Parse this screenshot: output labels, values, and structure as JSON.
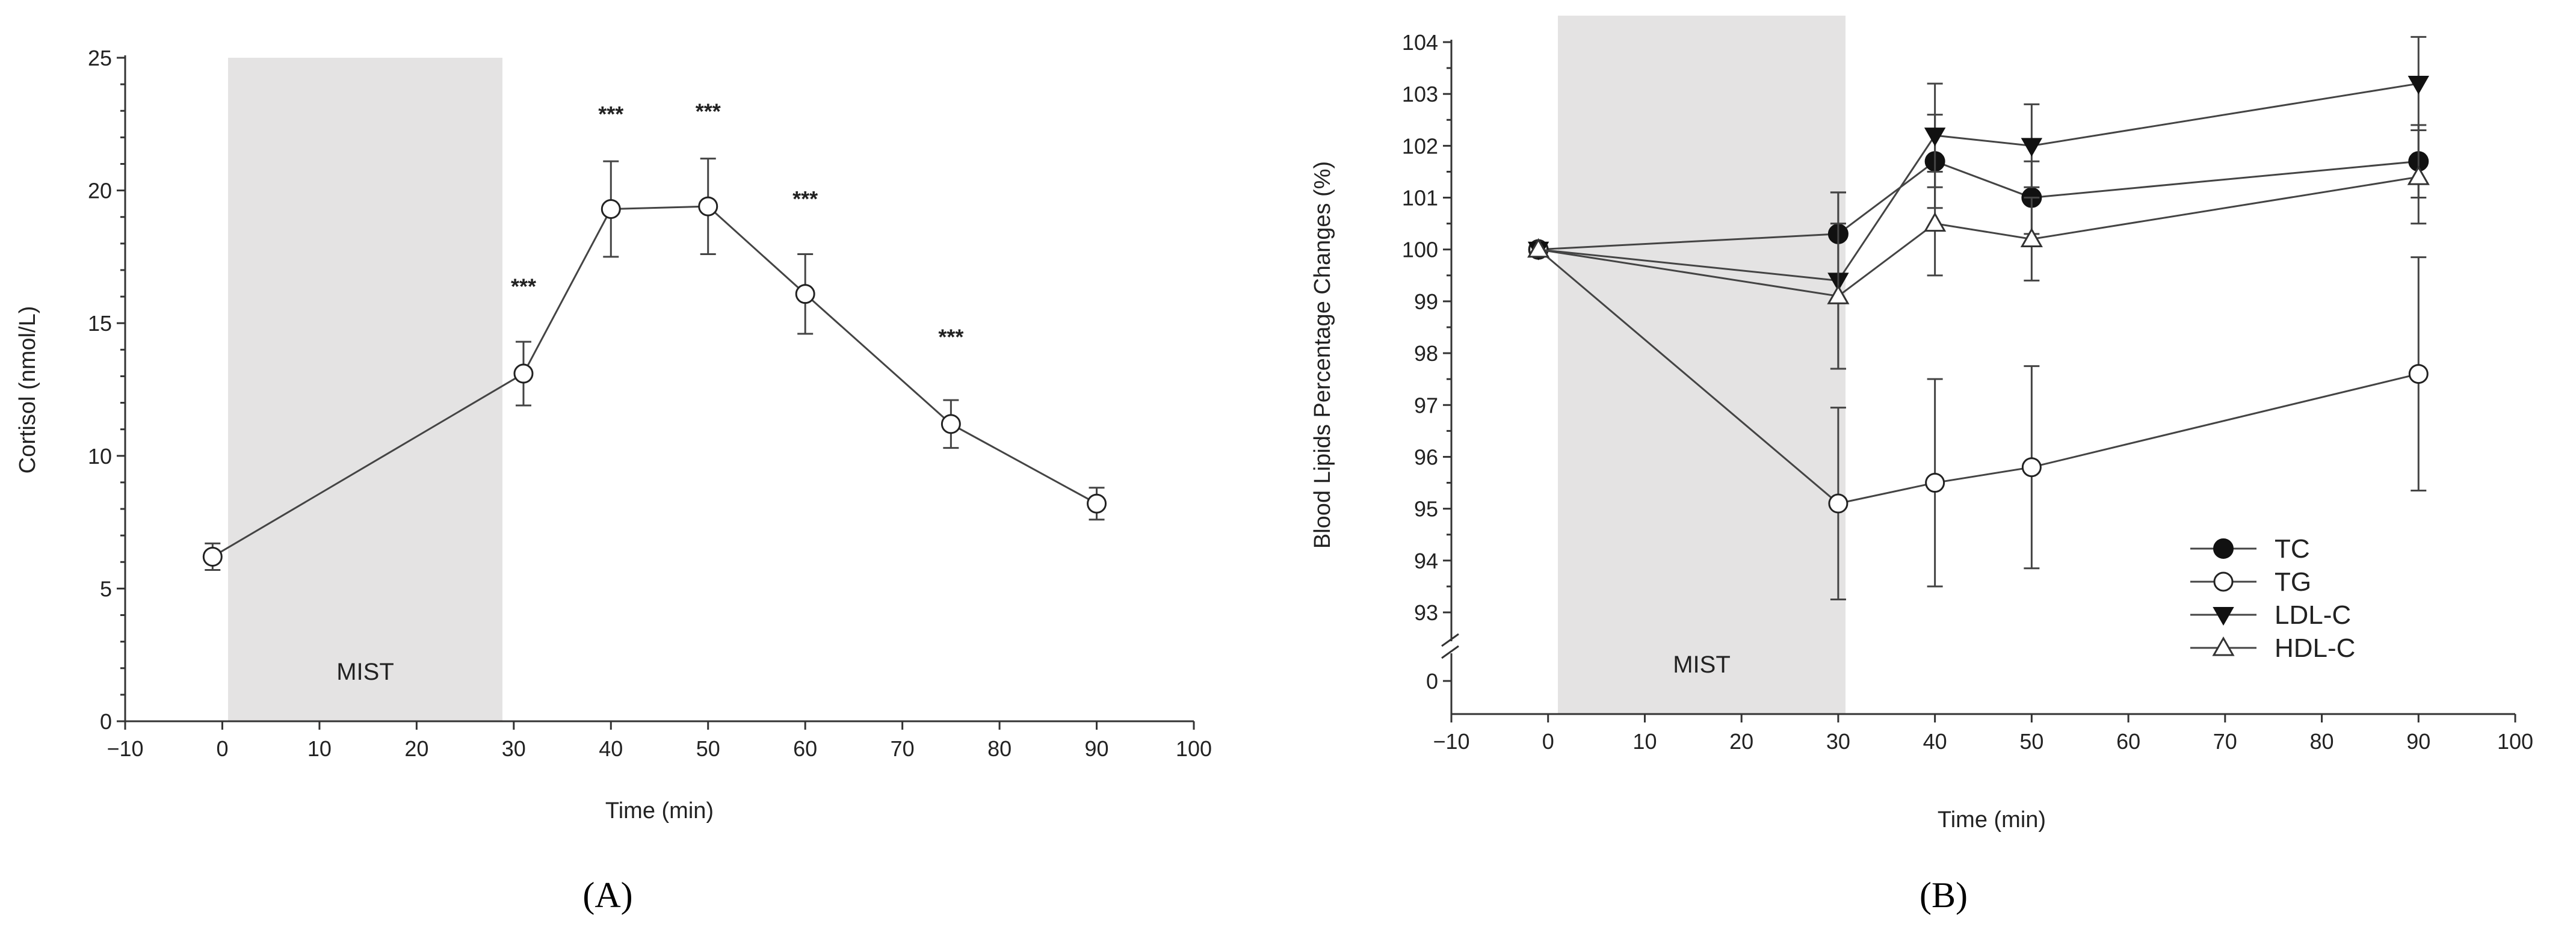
{
  "chart_data": [
    {
      "panel": "(A)",
      "type": "line",
      "ylabel": "Cortisol (nmol/L)",
      "xlabel": "Time (min)",
      "xlim": [
        -10,
        100
      ],
      "ylim": [
        0,
        25
      ],
      "xticks": [
        -10,
        0,
        10,
        20,
        30,
        40,
        50,
        60,
        70,
        80,
        90,
        100
      ],
      "yticks": [
        0,
        5,
        10,
        15,
        20,
        25
      ],
      "shaded_region": {
        "label": "MIST",
        "x": [
          0,
          30
        ]
      },
      "series": [
        {
          "name": "Cortisol",
          "marker": "open-circle",
          "x": [
            -1,
            31,
            40,
            50,
            60,
            75,
            90
          ],
          "y": [
            6.2,
            13.1,
            19.3,
            19.4,
            16.1,
            11.2,
            8.2
          ],
          "error": [
            0.5,
            1.2,
            1.8,
            1.8,
            1.5,
            0.9,
            0.6
          ]
        }
      ],
      "annotations": [
        {
          "text": "***",
          "x": 31,
          "y": 16.1
        },
        {
          "text": "***",
          "x": 40,
          "y": 22.6
        },
        {
          "text": "***",
          "x": 50,
          "y": 22.7
        },
        {
          "text": "***",
          "x": 60,
          "y": 19.4
        },
        {
          "text": "***",
          "x": 75,
          "y": 14.2
        }
      ]
    },
    {
      "panel": "(B)",
      "type": "line",
      "ylabel": "Blood Lipids Percentage Changes (%)",
      "xlabel": "Time (min)",
      "xlim": [
        -10,
        100
      ],
      "ylim": [
        93,
        104
      ],
      "axis_break": {
        "lower_tick": 0
      },
      "xticks": [
        -10,
        0,
        10,
        20,
        30,
        40,
        50,
        60,
        70,
        80,
        90,
        100
      ],
      "yticks": [
        93,
        94,
        95,
        96,
        97,
        98,
        99,
        100,
        101,
        102,
        103,
        104
      ],
      "shaded_region": {
        "label": "MIST",
        "x": [
          0,
          30
        ]
      },
      "legend_position": "bottom-right",
      "series": [
        {
          "name": "TC",
          "marker": "filled-circle",
          "x": [
            -1,
            30,
            40,
            50,
            90
          ],
          "y": [
            100.0,
            100.3,
            101.7,
            101.0,
            101.7
          ],
          "error": [
            0,
            0.8,
            0.9,
            0.7,
            0.7
          ]
        },
        {
          "name": "TG",
          "marker": "open-circle",
          "x": [
            -1,
            30,
            40,
            50,
            90
          ],
          "y": [
            100.0,
            95.1,
            95.5,
            95.8,
            97.6
          ],
          "error": [
            0,
            1.85,
            2.0,
            1.95,
            2.25
          ]
        },
        {
          "name": "LDL-C",
          "marker": "filled-triangle-down",
          "x": [
            -1,
            30,
            40,
            50,
            90
          ],
          "y": [
            100.0,
            99.4,
            102.2,
            102.0,
            103.2
          ],
          "error": [
            0,
            1.7,
            1.0,
            0.8,
            0.9
          ]
        },
        {
          "name": "HDL-C",
          "marker": "open-triangle-up",
          "x": [
            -1,
            30,
            40,
            50,
            90
          ],
          "y": [
            100.0,
            99.1,
            100.5,
            100.2,
            101.4
          ],
          "error": [
            0,
            1.4,
            1.0,
            0.8,
            0.9
          ]
        }
      ]
    }
  ]
}
